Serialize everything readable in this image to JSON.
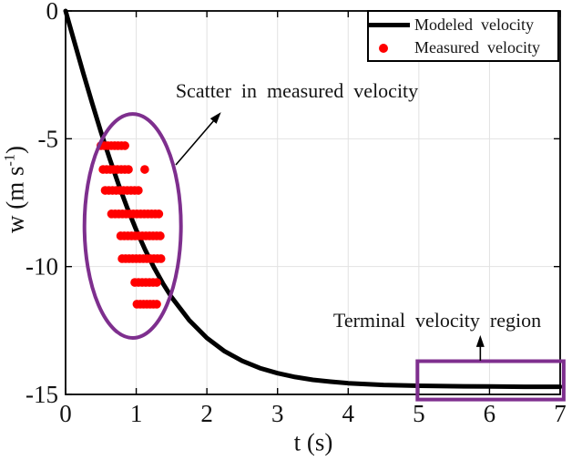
{
  "chart_data": {
    "type": "line+scatter",
    "title": "",
    "xlabel": "t (s)",
    "ylabel_main": "w (m s",
    "ylabel_sup": "-1",
    "ylabel_close": ")",
    "xlim": [
      0,
      7
    ],
    "ylim": [
      -15,
      0
    ],
    "x_ticks": [
      "0",
      "1",
      "2",
      "3",
      "4",
      "5",
      "6",
      "7"
    ],
    "x_tick_values": [
      0,
      1,
      2,
      3,
      4,
      5,
      6,
      7
    ],
    "y_ticks": [
      "0",
      "-5",
      "-10",
      "-15"
    ],
    "y_tick_values": [
      0,
      -5,
      -10,
      -15
    ],
    "grid": {
      "x_lines": [
        1,
        2,
        3,
        4,
        5,
        6
      ],
      "y_lines": [
        -5,
        -10
      ],
      "color": "#e2e2e2"
    },
    "modeled": {
      "name": "Modeled velocity",
      "color": "#000000",
      "model": "w(t) = -14.7*tanh(9.8*t/14.7)",
      "terminal_velocity_m_per_s": -14.7,
      "samples_t": [
        0,
        0.125,
        0.25,
        0.375,
        0.5,
        0.625,
        0.75,
        0.875,
        1,
        1.125,
        1.25,
        1.375,
        1.5,
        1.75,
        2,
        2.25,
        2.5,
        2.75,
        3,
        3.25,
        3.5,
        3.75,
        4,
        4.5,
        5,
        5.5,
        6,
        6.5,
        7
      ],
      "samples_w": [
        0,
        -1.22,
        -2.43,
        -3.6,
        -4.73,
        -5.79,
        -6.79,
        -7.72,
        -8.57,
        -9.34,
        -10.03,
        -10.65,
        -11.2,
        -12.1,
        -12.79,
        -13.31,
        -13.69,
        -13.97,
        -14.17,
        -14.32,
        -14.43,
        -14.5,
        -14.56,
        -14.63,
        -14.66,
        -14.68,
        -14.69,
        -14.7,
        -14.7
      ]
    },
    "measured": {
      "name": "Measured velocity",
      "color": "#ff0000",
      "clusters": [
        {
          "w": -5.27,
          "t_start": 0.5,
          "t_end": 0.84
        },
        {
          "w": -6.2,
          "t_start": 0.53,
          "t_end": 0.89
        },
        {
          "w": -6.2,
          "t_start": 1.12,
          "t_end": 1.12
        },
        {
          "w": -7.02,
          "t_start": 0.56,
          "t_end": 1.03
        },
        {
          "w": -7.94,
          "t_start": 0.65,
          "t_end": 1.32
        },
        {
          "w": -8.8,
          "t_start": 0.78,
          "t_end": 1.34
        },
        {
          "w": -9.69,
          "t_start": 0.8,
          "t_end": 1.35
        },
        {
          "w": -10.62,
          "t_start": 0.98,
          "t_end": 1.29
        },
        {
          "w": -11.47,
          "t_start": 1.01,
          "t_end": 1.29
        }
      ]
    },
    "legend": {
      "position": "top-right",
      "items": [
        {
          "label": "Modeled velocity",
          "marker": "line",
          "color": "#000000"
        },
        {
          "label": "Measured velocity",
          "marker": "dot",
          "color": "#ff0000"
        }
      ]
    },
    "annotations": {
      "color": "#7E2F8E",
      "scatter_label": {
        "text": "Scatter in measured velocity"
      },
      "terminal_label": {
        "text": "Terminal velocity region"
      },
      "ellipse": {
        "cx_t": 0.95,
        "cy_w": -8.41,
        "rx_t": 0.683,
        "ry_w": 4.38
      },
      "rect": {
        "t0": 4.98,
        "t1": 7.05,
        "w0": -13.7,
        "w1": -15.2
      },
      "arrow_scatter": {
        "from_t": 1.56,
        "from_w": -6.02,
        "to_t": 2.2,
        "to_w": -3.96
      },
      "arrow_terminal": {
        "from_t": 5.87,
        "from_w": -13.68,
        "to_t": 5.87,
        "to_w": -12.68
      }
    }
  }
}
